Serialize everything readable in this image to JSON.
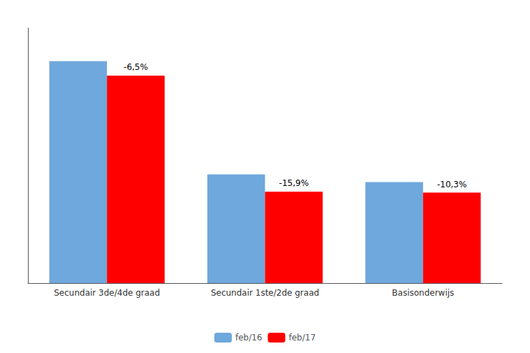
{
  "chart_data": {
    "type": "bar",
    "categories": [
      "Secundair 3de/4de graad",
      "Secundair 1ste/2de graad",
      "Basisonderwijs"
    ],
    "series": [
      {
        "name": "feb/16",
        "color": "#6fa8dc",
        "values": [
          1000,
          490,
          455
        ]
      },
      {
        "name": "feb/17",
        "color": "#ff0000",
        "values": [
          935,
          412,
          408
        ]
      }
    ],
    "annotations": [
      "-6,5%",
      "-15,9%",
      "-10,3%"
    ],
    "ylim": [
      0,
      1150
    ],
    "grid": false,
    "legend": "bottom",
    "tick_labels": "x"
  }
}
